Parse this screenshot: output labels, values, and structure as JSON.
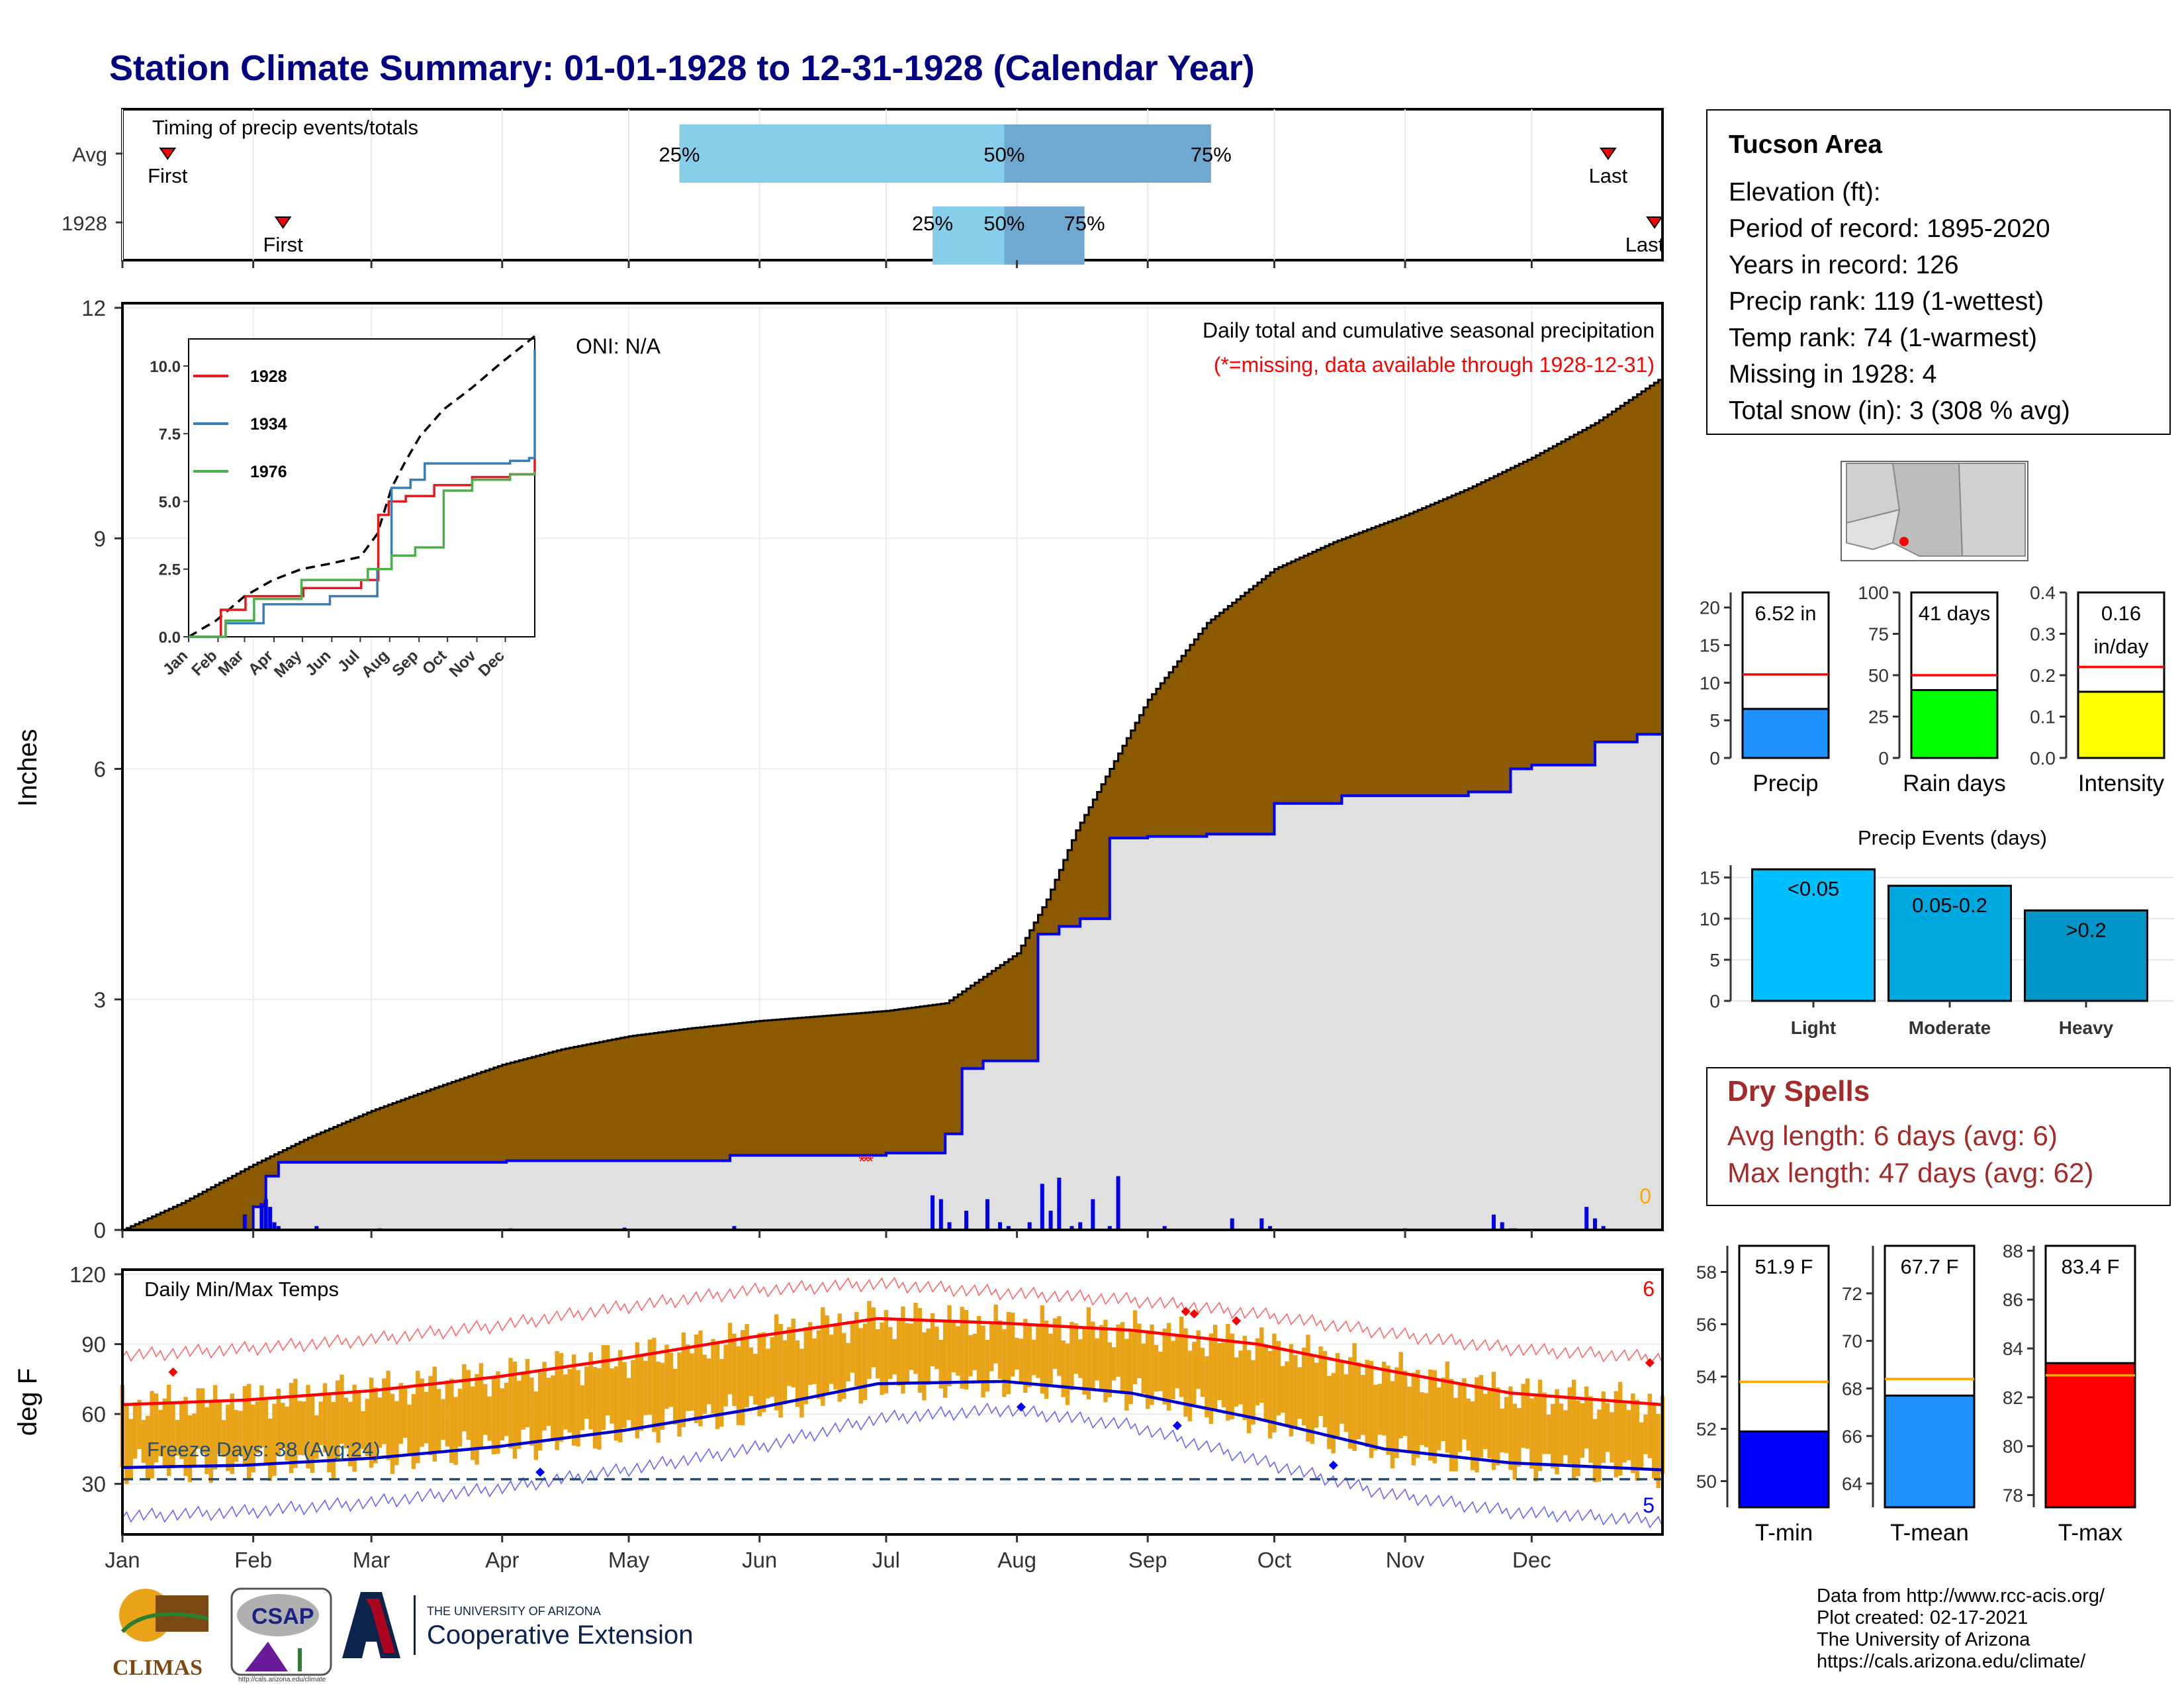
{
  "title": "Station Climate Summary: 01-01-1928 to 12-31-1928 (Calendar Year)",
  "timing_panel": {
    "label": "Timing of precip events/totals",
    "rows": [
      {
        "name": "Avg",
        "first_label": "First",
        "last_label": "Last",
        "p25": "25%",
        "p50": "50%",
        "p75": "75%",
        "first_day": 7,
        "last_day": 355,
        "p25_day": 133,
        "p50_day": 210,
        "p75_day": 259
      },
      {
        "name": "1928",
        "first_label": "First",
        "last_label": "Last",
        "p25": "25%",
        "p50": "50%",
        "p75": "75%",
        "first_day": 32,
        "last_day": 366,
        "p25_day": 193,
        "p50_day": 210,
        "p75_day": 229
      }
    ]
  },
  "chart_data": [
    {
      "type": "area",
      "name": "precip_main",
      "ylabel": "Inches",
      "ylim": [
        0,
        12
      ],
      "yticks": [
        0,
        3,
        6,
        9,
        12
      ],
      "months": [
        "Jan",
        "Feb",
        "Mar",
        "Apr",
        "May",
        "Jun",
        "Jul",
        "Aug",
        "Sep",
        "Oct",
        "Nov",
        "Dec"
      ],
      "annotation_right": "Daily total and cumulative seasonal precipitation",
      "missing_note": "(*=missing, data available through 1928-12-31)",
      "oni": "ONI: N/A",
      "zero_count": "0",
      "avg_cumulative": {
        "doy": [
          1,
          15,
          32,
          45,
          60,
          75,
          91,
          105,
          121,
          135,
          152,
          166,
          182,
          196,
          213,
          220,
          227,
          235,
          244,
          258,
          274,
          288,
          305,
          320,
          335,
          350,
          366
        ],
        "values": [
          0.0,
          0.35,
          0.85,
          1.2,
          1.55,
          1.85,
          2.15,
          2.35,
          2.52,
          2.62,
          2.72,
          2.78,
          2.85,
          2.95,
          3.6,
          4.3,
          5.2,
          6.0,
          6.9,
          7.9,
          8.6,
          8.95,
          9.3,
          9.65,
          10.05,
          10.5,
          11.1
        ]
      },
      "cumulative_1928": {
        "doy": [
          1,
          32,
          35,
          38,
          40,
          61,
          92,
          122,
          145,
          167,
          182,
          187,
          196,
          200,
          205,
          214,
          218,
          223,
          228,
          235,
          244,
          258,
          274,
          290,
          305,
          320,
          330,
          335,
          350,
          360,
          366
        ],
        "values": [
          0.0,
          0.3,
          0.7,
          0.88,
          0.88,
          0.88,
          0.9,
          0.9,
          0.97,
          0.97,
          1.0,
          1.0,
          1.25,
          2.1,
          2.2,
          2.2,
          3.85,
          3.95,
          4.05,
          5.1,
          5.12,
          5.15,
          5.55,
          5.65,
          5.65,
          5.7,
          6.0,
          6.05,
          6.35,
          6.45,
          6.55
        ]
      },
      "daily_bars": {
        "doy": [
          30,
          34,
          35,
          36,
          37,
          38,
          47,
          62,
          93,
          120,
          146,
          193,
          195,
          197,
          201,
          206,
          209,
          211,
          216,
          219,
          221,
          223,
          226,
          228,
          231,
          235,
          237,
          248,
          264,
          271,
          273,
          305,
          326,
          328,
          330,
          331,
          348,
          350,
          352
        ],
        "values": [
          0.2,
          0.35,
          0.4,
          0.3,
          0.1,
          0.05,
          0.05,
          0.02,
          0.02,
          0.03,
          0.05,
          0.45,
          0.4,
          0.1,
          0.25,
          0.4,
          0.1,
          0.05,
          0.1,
          0.6,
          0.25,
          0.68,
          0.05,
          0.1,
          0.4,
          0.05,
          0.7,
          0.05,
          0.15,
          0.15,
          0.05,
          0.02,
          0.2,
          0.1,
          0.02,
          0.02,
          0.3,
          0.15,
          0.05
        ]
      },
      "inset": {
        "yticks": [
          "0.0",
          "2.5",
          "5.0",
          "7.5",
          "10.0"
        ],
        "months": [
          "Jan",
          "Feb",
          "Mar",
          "Apr",
          "May",
          "Jun",
          "Jul",
          "Aug",
          "Sep",
          "Oct",
          "Nov",
          "Dec"
        ],
        "series": [
          {
            "name": "1928",
            "color": "#E41A1C",
            "doy": [
              1,
              35,
              61,
              122,
              183,
              201,
              212,
              230,
              260,
              300,
              340,
              366
            ],
            "values": [
              0,
              1.0,
              1.5,
              1.8,
              2.1,
              4.5,
              5.0,
              5.2,
              5.6,
              5.9,
              6.0,
              6.55
            ]
          },
          {
            "name": "1934",
            "color": "#377EB8",
            "doy": [
              1,
              40,
              80,
              150,
              200,
              215,
              235,
              250,
              300,
              340,
              360,
              366
            ],
            "values": [
              0,
              0.5,
              1.2,
              1.5,
              2.5,
              5.5,
              5.8,
              6.4,
              6.4,
              6.5,
              6.6,
              10.6
            ]
          },
          {
            "name": "1976",
            "color": "#4DAF4A",
            "doy": [
              1,
              40,
              70,
              120,
              190,
              215,
              240,
              270,
              300,
              340,
              366
            ],
            "values": [
              0,
              0.6,
              1.4,
              2.1,
              2.5,
              3.0,
              3.3,
              5.4,
              5.8,
              6.0,
              6.1
            ]
          }
        ],
        "avg_doy": [
          1,
          30,
          60,
          90,
          120,
          150,
          182,
          200,
          215,
          230,
          245,
          270,
          300,
          330,
          366
        ],
        "avg_values": [
          0,
          0.6,
          1.5,
          2.1,
          2.5,
          2.7,
          2.95,
          3.8,
          5.5,
          6.5,
          7.4,
          8.4,
          9.2,
          10.1,
          11.1
        ]
      }
    },
    {
      "type": "line",
      "name": "temps",
      "title": "Daily Min/Max Temps",
      "ylabel": "deg F",
      "ylim": [
        10,
        120
      ],
      "yticks": [
        30,
        60,
        90,
        120
      ],
      "months": [
        "Jan",
        "Feb",
        "Mar",
        "Apr",
        "May",
        "Jun",
        "Jul",
        "Aug",
        "Sep",
        "Oct",
        "Nov",
        "Dec"
      ],
      "freeze_label": "Freeze Days: 38 (Avg:24)",
      "freeze_line": 32,
      "hot_count": "6",
      "cold_count": "5",
      "avg_max": {
        "doy": [
          1,
          30,
          60,
          90,
          120,
          150,
          180,
          210,
          240,
          270,
          300,
          330,
          366
        ],
        "values": [
          64,
          66,
          70,
          76,
          84,
          93,
          101,
          99,
          96,
          90,
          79,
          69,
          64
        ]
      },
      "avg_min": {
        "doy": [
          1,
          30,
          60,
          90,
          120,
          150,
          180,
          210,
          240,
          270,
          300,
          330,
          366
        ],
        "values": [
          37,
          38,
          41,
          46,
          53,
          62,
          73,
          74,
          69,
          58,
          45,
          39,
          36
        ]
      },
      "record_max": {
        "doy": [
          1,
          30,
          60,
          90,
          120,
          150,
          180,
          210,
          240,
          270,
          300,
          330,
          366
        ],
        "values": [
          85,
          88,
          92,
          98,
          106,
          113,
          116,
          112,
          109,
          103,
          95,
          88,
          84
        ]
      },
      "record_min": {
        "doy": [
          1,
          30,
          60,
          90,
          120,
          150,
          180,
          210,
          240,
          270,
          300,
          330,
          366
        ],
        "values": [
          16,
          18,
          22,
          28,
          36,
          45,
          58,
          62,
          55,
          40,
          26,
          18,
          14
        ]
      }
    },
    {
      "type": "bar",
      "name": "precip_total",
      "title": "Precip",
      "value_label": "6.52 in",
      "values": [
        6.52
      ],
      "avg": 11.1,
      "ylim": [
        0,
        22
      ],
      "yticks": [
        0,
        5,
        10,
        15,
        20
      ],
      "color": "#1E90FF"
    },
    {
      "type": "bar",
      "name": "rain_days",
      "title": "Rain days",
      "value_label": "41 days",
      "values": [
        41
      ],
      "avg": 50,
      "ylim": [
        0,
        100
      ],
      "yticks": [
        0,
        25,
        50,
        75,
        100
      ],
      "color": "#00FF00"
    },
    {
      "type": "bar",
      "name": "intensity",
      "title": "Intensity",
      "value_label": [
        "0.16",
        "in/day"
      ],
      "values": [
        0.16
      ],
      "avg": 0.22,
      "ylim": [
        0,
        0.4
      ],
      "yticks": [
        "0.0",
        "0.1",
        "0.2",
        "0.3",
        "0.4"
      ],
      "color": "#FFFF00"
    },
    {
      "type": "bar",
      "name": "precip_events",
      "title": "Precip Events (days)",
      "categories": [
        "Light",
        "Moderate",
        "Heavy"
      ],
      "labels": [
        "<0.05",
        "0.05-0.2",
        ">0.2"
      ],
      "values": [
        16,
        14,
        11
      ],
      "ylim": [
        0,
        16.5
      ],
      "yticks": [
        0,
        5,
        10,
        15
      ],
      "colors": [
        "#00BFFF",
        "#00A8E0",
        "#0096C8"
      ]
    },
    {
      "type": "bar",
      "name": "tmin",
      "title": "T-min",
      "value_label": "51.9 F",
      "values": [
        51.9
      ],
      "avg": 53.8,
      "ylim": [
        49,
        59
      ],
      "yticks": [
        50,
        52,
        54,
        56,
        58
      ],
      "color": "#0000FF"
    },
    {
      "type": "bar",
      "name": "tmean",
      "title": "T-mean",
      "value_label": "67.7 F",
      "values": [
        67.7
      ],
      "avg": 68.4,
      "ylim": [
        63,
        74
      ],
      "yticks": [
        64,
        66,
        68,
        70,
        72
      ],
      "color": "#1E90FF"
    },
    {
      "type": "bar",
      "name": "tmax",
      "title": "T-max",
      "value_label": "83.4 F",
      "values": [
        83.4
      ],
      "avg": 82.9,
      "ylim": [
        77.5,
        88.2
      ],
      "yticks": [
        78,
        80,
        82,
        84,
        86,
        88
      ],
      "color": "#FF0000"
    }
  ],
  "info": {
    "station": "Tucson Area",
    "elevation": "Elevation (ft):",
    "period": "Period of record: 1895-2020",
    "years": "Years in record: 126",
    "precip_rank": "Precip rank: 119 (1-wettest)",
    "temp_rank": "Temp rank: 74 (1-warmest)",
    "missing": "Missing in 1928: 4",
    "snow": "Total snow (in): 3 (308 % avg)"
  },
  "dry_spells": {
    "title": "Dry Spells",
    "avg": "Avg length: 6 days (avg: 6)",
    "max": "Max length: 47 days (avg: 62)"
  },
  "credits": {
    "line1": "Data from http://www.rcc-acis.org/",
    "line2": "Plot created: 02-17-2021",
    "line3": "The University of Arizona",
    "line4": "https://cals.arizona.edu/climate/"
  },
  "logos": {
    "climas": "CLIMAS",
    "csap": "CSAP",
    "csap_url": "http://cals.arizona.edu/climate",
    "ua_small": "THE UNIVERSITY OF ARIZONA",
    "ua_big": "Cooperative Extension"
  },
  "colors": {
    "title": "#000080",
    "cumulative": "#8B5A00",
    "avg_fill": "#E0E0E0",
    "blue": "#0000EE",
    "orange_bars": "#E8A317",
    "dry": "#A52A2A"
  }
}
